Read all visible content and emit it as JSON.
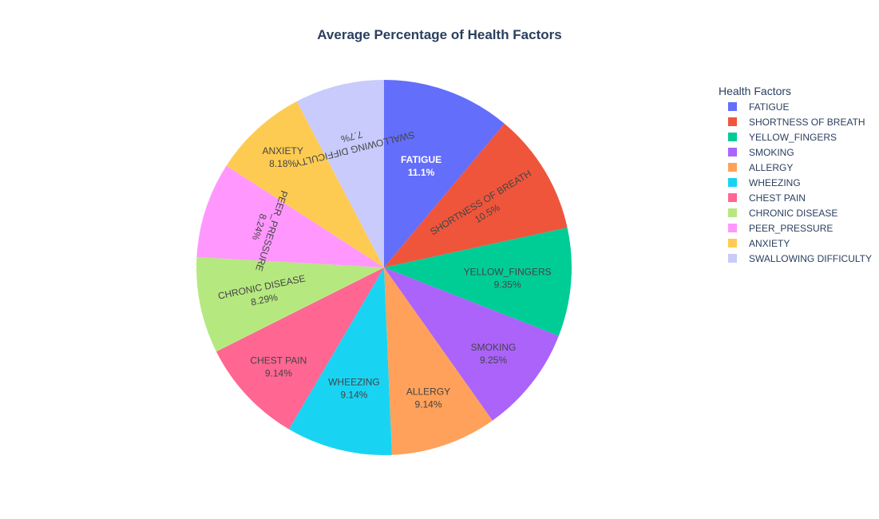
{
  "chart_data": {
    "type": "pie",
    "title": "Average Percentage of Health Factors",
    "legend_title": "Health Factors",
    "legend_position": "right",
    "sort": "descending",
    "direction": "clockwise",
    "slices": [
      {
        "label": "FATIGUE",
        "value": 11.1,
        "text": "11.1%",
        "color": "#636efa",
        "text_color": "#ffffff",
        "text_weight": "bold"
      },
      {
        "label": "SHORTNESS OF BREATH",
        "value": 10.5,
        "text": "10.5%",
        "color": "#ef553b",
        "text_color": "#444444"
      },
      {
        "label": "YELLOW_FINGERS",
        "value": 9.35,
        "text": "9.35%",
        "color": "#00cc96",
        "text_color": "#444444"
      },
      {
        "label": "SMOKING",
        "value": 9.25,
        "text": "9.25%",
        "color": "#ab63fa",
        "text_color": "#444444"
      },
      {
        "label": "ALLERGY",
        "value": 9.14,
        "text": "9.14%",
        "color": "#ffa15a",
        "text_color": "#444444"
      },
      {
        "label": "WHEEZING",
        "value": 9.14,
        "text": "9.14%",
        "color": "#19d3f3",
        "text_color": "#444444"
      },
      {
        "label": "CHEST PAIN",
        "value": 9.14,
        "text": "9.14%",
        "color": "#ff6692",
        "text_color": "#444444"
      },
      {
        "label": "CHRONIC DISEASE",
        "value": 8.29,
        "text": "8.29%",
        "color": "#b6e880",
        "text_color": "#444444"
      },
      {
        "label": "PEER_PRESSURE",
        "value": 8.24,
        "text": "8.24%",
        "color": "#ff97ff",
        "text_color": "#444444"
      },
      {
        "label": "ANXIETY",
        "value": 8.18,
        "text": "8.18%",
        "color": "#fecb52",
        "text_color": "#444444"
      },
      {
        "label": "SWALLOWING DIFFICULTY",
        "value": 7.7,
        "text": "7.7%",
        "color": "#c8cbfc",
        "text_color": "#444444"
      }
    ],
    "legend_order": [
      "FATIGUE",
      "SHORTNESS OF BREATH",
      "YELLOW_FINGERS",
      "SMOKING",
      "ALLERGY",
      "WHEEZING",
      "CHEST PAIN",
      "CHRONIC DISEASE",
      "PEER_PRESSURE",
      "ANXIETY",
      "SWALLOWING DIFFICULTY"
    ],
    "legend_colors": [
      "#636efa",
      "#ef553b",
      "#00cc96",
      "#ab63fa",
      "#ffa15a",
      "#19d3f3",
      "#ff6692",
      "#b6e880",
      "#ff97ff",
      "#fecb52",
      "#c8cbfc"
    ]
  }
}
